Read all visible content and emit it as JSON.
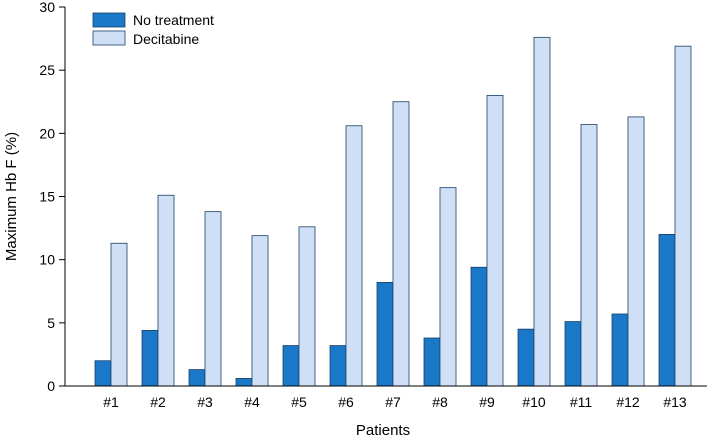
{
  "chart_data": {
    "type": "bar",
    "title": "",
    "xlabel": "Patients",
    "ylabel": "Maximum Hb F (%)",
    "ylim": [
      0,
      30
    ],
    "yticks": [
      0,
      5,
      10,
      15,
      20,
      25,
      30
    ],
    "categories": [
      "#1",
      "#2",
      "#3",
      "#4",
      "#5",
      "#6",
      "#7",
      "#8",
      "#9",
      "#10",
      "#11",
      "#12",
      "#13"
    ],
    "series": [
      {
        "name": "No treatment",
        "color": "#1a78c8",
        "values": [
          2.0,
          4.4,
          1.3,
          0.6,
          3.2,
          3.2,
          8.2,
          3.8,
          9.4,
          4.5,
          5.1,
          5.7,
          12.0
        ]
      },
      {
        "name": "Decitabine",
        "color": "#cfe0f6",
        "values": [
          11.3,
          15.1,
          13.8,
          11.9,
          12.6,
          20.6,
          22.5,
          15.7,
          23.0,
          27.6,
          20.7,
          21.3,
          26.9
        ]
      }
    ],
    "legend": "top-left",
    "grid": false
  }
}
